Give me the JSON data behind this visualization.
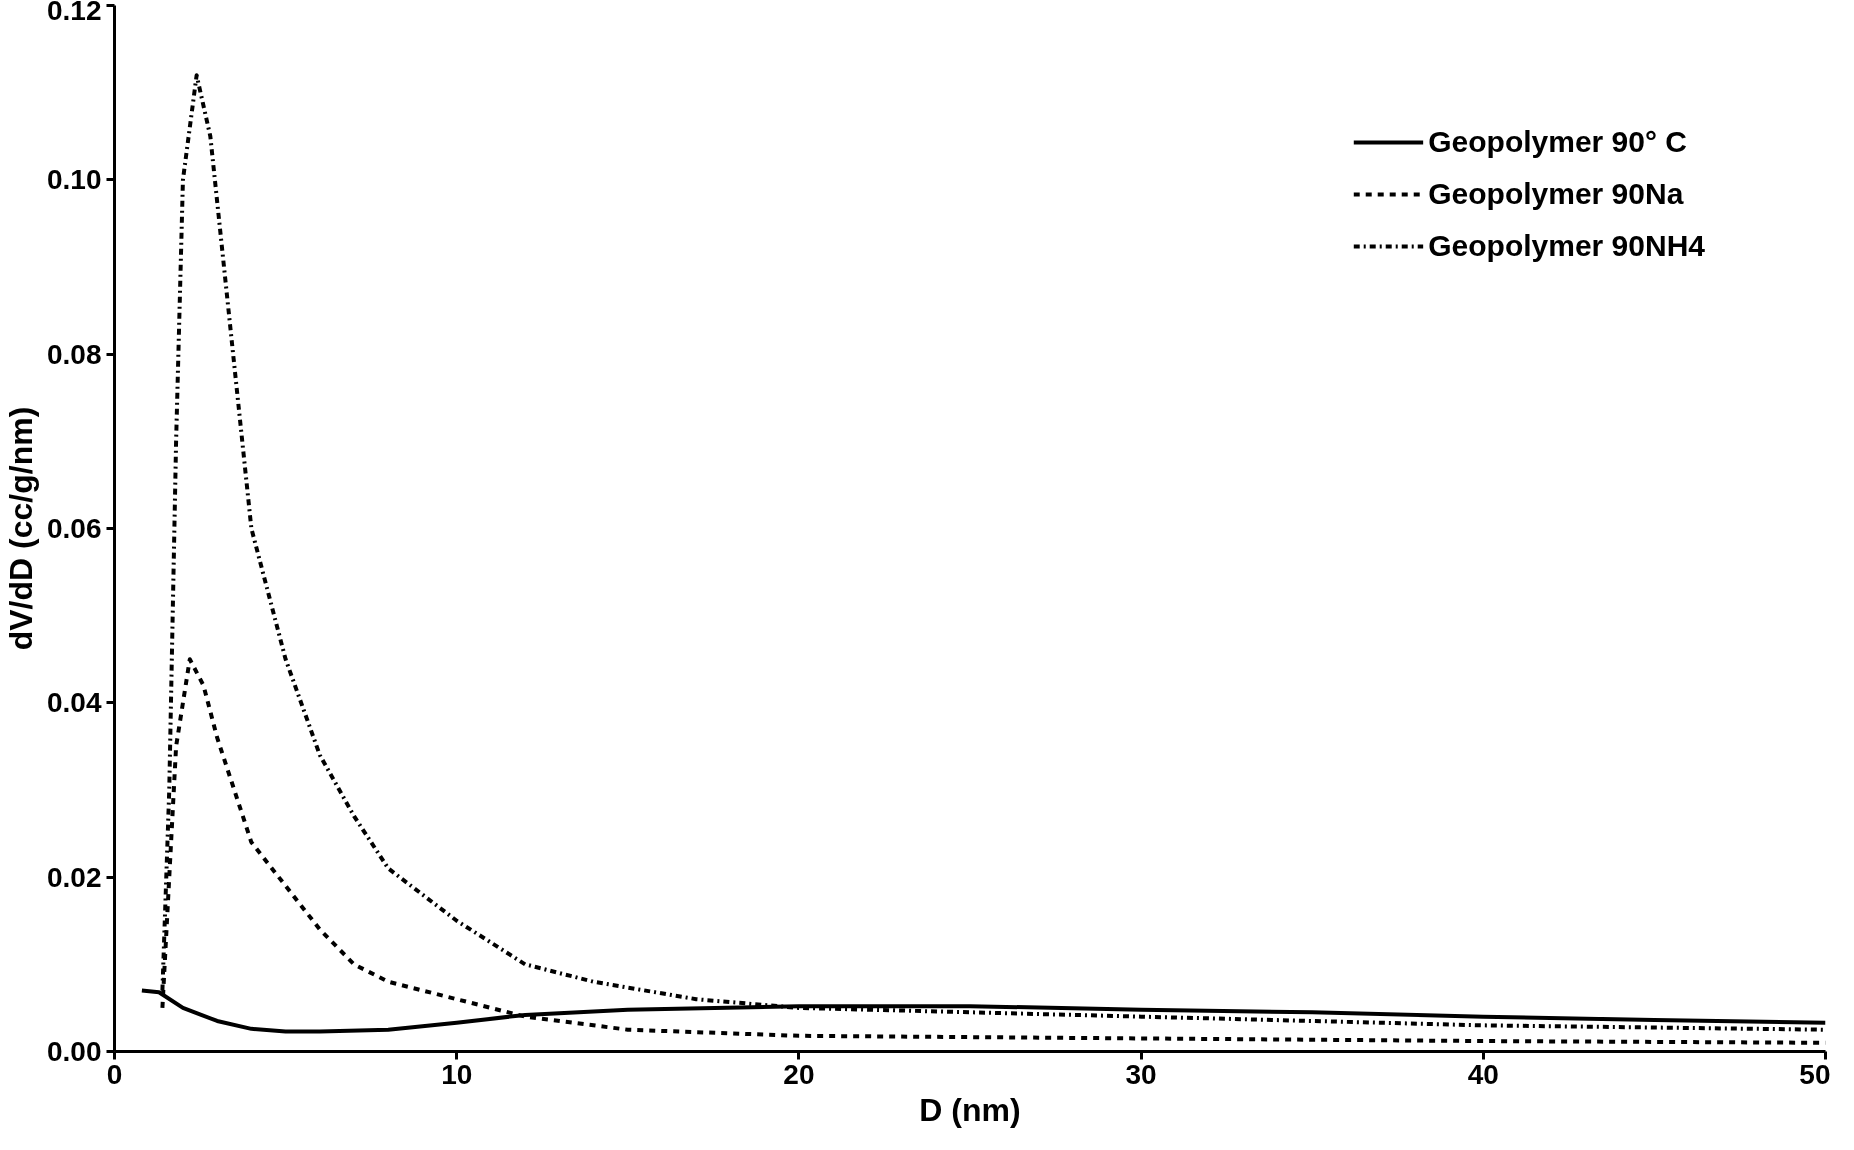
{
  "chart_data": {
    "type": "line",
    "xlabel": "D (nm)",
    "ylabel": "dV/dD (cc/g/nm)",
    "xlim": [
      0,
      50
    ],
    "xticks": [
      0,
      10,
      20,
      30,
      40,
      50
    ],
    "ylim": [
      0,
      0.12
    ],
    "yticks": [
      {
        "value": 0,
        "label": "0.00"
      },
      {
        "value": 0.02,
        "label": "0.02"
      },
      {
        "value": 0.04,
        "label": "0.04"
      },
      {
        "value": 0.06,
        "label": "0.06"
      },
      {
        "value": 0.08,
        "label": "0.08"
      },
      {
        "value": 0.1,
        "label": "0.10"
      },
      {
        "value": 0.12,
        "label": "0.12"
      }
    ],
    "grid": false,
    "legend": "top right",
    "marker": "none",
    "series": [
      {
        "name": "Geopolymer 90° C",
        "color": "#000000",
        "line_style": "solid",
        "x": [
          0.8,
          1.3,
          2,
          3,
          4,
          5,
          6,
          8,
          10,
          12,
          15,
          20,
          25,
          30,
          35,
          40,
          45,
          50
        ],
        "values": [
          0.007,
          0.0068,
          0.005,
          0.0035,
          0.0026,
          0.0023,
          0.0023,
          0.0025,
          0.0033,
          0.0042,
          0.0048,
          0.0052,
          0.0052,
          0.0048,
          0.0045,
          0.004,
          0.0036,
          0.0033
        ]
      },
      {
        "name": "Geopolymer 90Na",
        "color": "#000000",
        "line_style": "dashed",
        "x": [
          1.4,
          1.6,
          1.8,
          2.2,
          2.6,
          3,
          3.5,
          4,
          5,
          6,
          7,
          8,
          10,
          12,
          15,
          20,
          30,
          40,
          50
        ],
        "values": [
          0.005,
          0.02,
          0.035,
          0.045,
          0.042,
          0.036,
          0.03,
          0.024,
          0.019,
          0.014,
          0.01,
          0.008,
          0.006,
          0.004,
          0.0025,
          0.0018,
          0.0015,
          0.0012,
          0.001
        ]
      },
      {
        "name": "Geopolymer 90NH4",
        "color": "#000000",
        "line_style": "dashdot",
        "x": [
          1.4,
          1.6,
          1.8,
          2.0,
          2.4,
          2.8,
          3.2,
          3.6,
          4,
          5,
          6,
          7,
          8,
          10,
          12,
          14,
          17,
          20,
          25,
          30,
          40,
          50
        ],
        "values": [
          0.007,
          0.03,
          0.07,
          0.1,
          0.112,
          0.105,
          0.09,
          0.075,
          0.06,
          0.045,
          0.034,
          0.027,
          0.021,
          0.015,
          0.01,
          0.008,
          0.006,
          0.005,
          0.0045,
          0.004,
          0.003,
          0.0025
        ]
      }
    ]
  }
}
